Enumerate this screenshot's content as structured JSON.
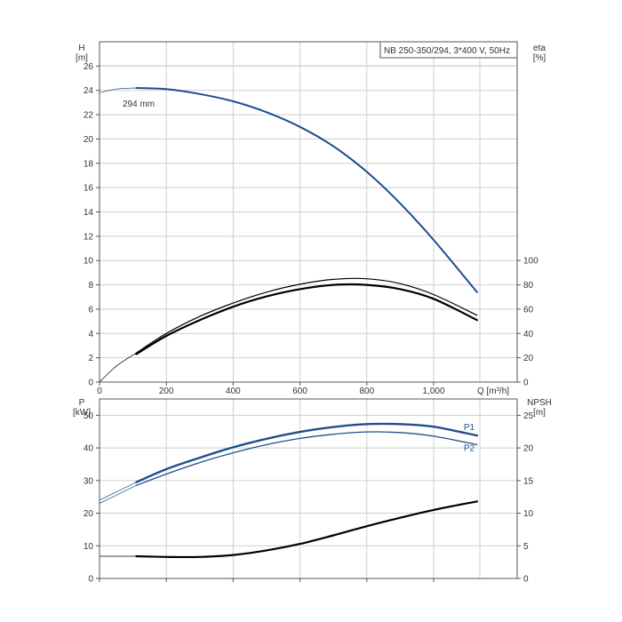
{
  "info_box": "NB 250-350/294, 3*400 V, 50Hz",
  "colors": {
    "blue": "#1f4e8c",
    "black": "#000000",
    "grid": "#cfcfcf",
    "axis": "#555555"
  },
  "chart_data": [
    {
      "type": "line",
      "panel": "top",
      "x_axis": {
        "label": "Q [m³/h]",
        "range": [
          0,
          1250
        ],
        "ticks": [
          0,
          200,
          400,
          600,
          800,
          1000
        ],
        "tick_labels": [
          "0",
          "200",
          "400",
          "600",
          "800",
          "1,000"
        ]
      },
      "y_left": {
        "label_name": "H",
        "label_unit": "[m]",
        "range": [
          0,
          28
        ],
        "ticks": [
          0,
          2,
          4,
          6,
          8,
          10,
          12,
          14,
          16,
          18,
          20,
          22,
          24,
          26
        ]
      },
      "y_right": {
        "label_name": "eta",
        "label_unit": "[%]",
        "range": [
          0,
          280
        ],
        "ticks": [
          0,
          20,
          40,
          60,
          80,
          100
        ]
      },
      "annotation": "294 mm",
      "grid": true,
      "series": [
        {
          "axis": "left",
          "color": "blue",
          "width": 2,
          "x": [
            110,
            200,
            300,
            400,
            500,
            600,
            700,
            800,
            900,
            1000,
            1130
          ],
          "y": [
            24.2,
            24.1,
            23.7,
            23.1,
            22.2,
            21.0,
            19.4,
            17.3,
            14.7,
            11.7,
            7.4
          ]
        },
        {
          "axis": "left",
          "color": "blue",
          "width": 0.7,
          "x": [
            0,
            50,
            110
          ],
          "y": [
            23.8,
            24.1,
            24.2
          ]
        },
        {
          "axis": "right",
          "color": "black",
          "width": 1.2,
          "x": [
            110,
            200,
            300,
            400,
            500,
            600,
            700,
            800,
            900,
            1000,
            1130
          ],
          "y": [
            24,
            40,
            54,
            65,
            74,
            80.5,
            84.5,
            85,
            81,
            72,
            55
          ]
        },
        {
          "axis": "right",
          "color": "black",
          "width": 2.2,
          "x": [
            110,
            200,
            300,
            400,
            500,
            600,
            700,
            800,
            900,
            1000,
            1130
          ],
          "y": [
            23,
            38,
            51,
            62,
            70.5,
            76.5,
            80,
            80,
            76.5,
            68.5,
            51
          ]
        },
        {
          "axis": "right",
          "color": "black",
          "width": 0.7,
          "x": [
            0,
            50,
            110
          ],
          "y": [
            0,
            13,
            24
          ]
        }
      ]
    },
    {
      "type": "line",
      "panel": "bottom",
      "x_axis": {
        "range": [
          0,
          1250
        ],
        "ticks": [
          0,
          200,
          400,
          600,
          800,
          1000
        ]
      },
      "y_left": {
        "label_name": "P",
        "label_unit": "[kW]",
        "range": [
          0,
          55
        ],
        "ticks": [
          0,
          10,
          20,
          30,
          40,
          50
        ]
      },
      "y_right": {
        "label_name": "NPSH",
        "label_unit": "[m]",
        "range": [
          0,
          27.5
        ],
        "ticks": [
          0,
          5,
          10,
          15,
          20,
          25
        ]
      },
      "grid": true,
      "series": [
        {
          "name": "P1",
          "axis": "left",
          "color": "blue",
          "width": 2.4,
          "x": [
            110,
            200,
            300,
            400,
            500,
            600,
            700,
            800,
            900,
            1000,
            1130
          ],
          "y": [
            29.5,
            33.5,
            37.0,
            40.2,
            42.8,
            44.9,
            46.4,
            47.3,
            47.3,
            46.5,
            43.8
          ]
        },
        {
          "name": "P2",
          "axis": "left",
          "color": "blue",
          "width": 1.3,
          "x": [
            110,
            200,
            300,
            400,
            500,
            600,
            700,
            800,
            900,
            1000,
            1130
          ],
          "y": [
            28.5,
            32.0,
            35.5,
            38.5,
            41.0,
            42.9,
            44.2,
            44.9,
            44.7,
            43.6,
            41.0
          ]
        },
        {
          "axis": "left",
          "color": "blue",
          "width": 0.7,
          "x": [
            0,
            110
          ],
          "y": [
            24,
            29.5
          ]
        },
        {
          "axis": "left",
          "color": "blue",
          "width": 0.7,
          "x": [
            0,
            110
          ],
          "y": [
            23,
            28.5
          ]
        },
        {
          "axis": "right",
          "color": "black",
          "width": 2.2,
          "x": [
            110,
            200,
            300,
            400,
            500,
            600,
            700,
            800,
            900,
            1000,
            1130
          ],
          "y": [
            3.4,
            3.3,
            3.3,
            3.6,
            4.3,
            5.3,
            6.6,
            8.0,
            9.3,
            10.5,
            11.8
          ]
        },
        {
          "axis": "right",
          "color": "black",
          "width": 0.7,
          "x": [
            0,
            110
          ],
          "y": [
            3.4,
            3.4
          ]
        }
      ]
    }
  ]
}
